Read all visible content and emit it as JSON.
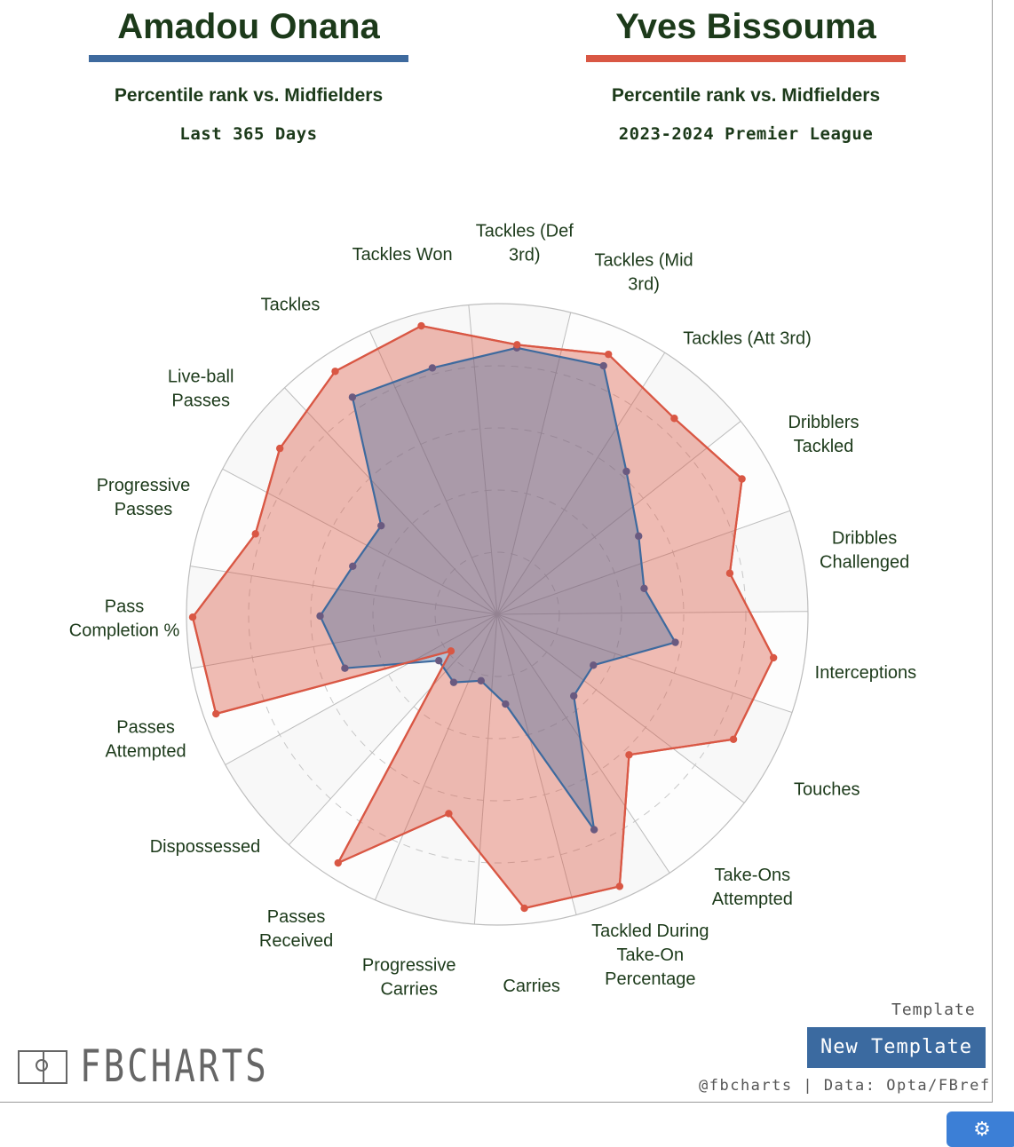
{
  "players": [
    {
      "name": "Amadou Onana",
      "subtitle": "Percentile rank vs. Midfielders",
      "period": "Last 365 Days",
      "color": "#3e6a9e"
    },
    {
      "name": "Yves Bissouma",
      "subtitle": "Percentile rank vs. Midfielders",
      "period": "2023-2024 Premier League",
      "color": "#d95744"
    }
  ],
  "template": {
    "label": "Template",
    "button_label": "New Template"
  },
  "credit": "@fbcharts | Data: Opta/FBref",
  "logo": {
    "text": "FBCHARTS"
  },
  "settings": {
    "icon": "gear-icon"
  },
  "chart_data": {
    "type": "radar",
    "ylim": [
      0,
      100
    ],
    "grid": true,
    "categories": [
      [
        "Tackles (Def",
        "3rd)"
      ],
      [
        "Tackles (Mid",
        "3rd)"
      ],
      [
        "Tackles (Att 3rd)"
      ],
      [
        "Dribblers",
        "Tackled"
      ],
      [
        "Dribbles",
        "Challenged"
      ],
      [
        "Interceptions"
      ],
      [
        "Touches"
      ],
      [
        "Take-Ons",
        "Attempted"
      ],
      [
        "Tackled During",
        "Take-On",
        "Percentage"
      ],
      [
        "Carries"
      ],
      [
        "Progressive",
        "Carries"
      ],
      [
        "Passes",
        "Received"
      ],
      [
        "Dispossessed"
      ],
      [
        "Passes",
        "Attempted"
      ],
      [
        "Pass",
        "Completion %"
      ],
      [
        "Progressive",
        "Passes"
      ],
      [
        "Live-ball",
        "Passes"
      ],
      [
        "Tackles"
      ],
      [
        "Tackles Won"
      ]
    ],
    "series": [
      {
        "name": "Amadou Onana",
        "color": "#3e6a9e",
        "values": [
          86,
          87,
          62,
          52,
          48,
          58,
          35,
          36,
          76,
          29,
          22,
          26,
          24,
          52,
          57,
          49,
          47,
          84,
          82
        ]
      },
      {
        "name": "Yves Bissouma",
        "color": "#d95744",
        "values": [
          87,
          91,
          85,
          90,
          76,
          90,
          86,
          62,
          96,
          95,
          66,
          95,
          19,
          96,
          98,
          82,
          88,
          94,
          96
        ]
      }
    ]
  }
}
